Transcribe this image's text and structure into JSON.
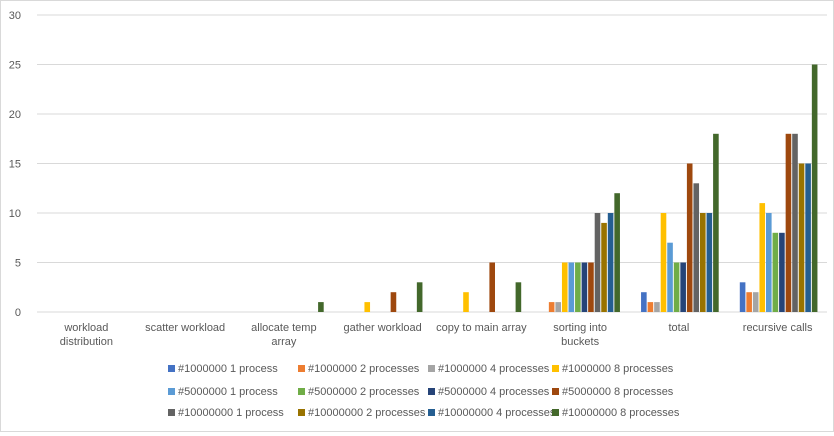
{
  "chart_data": {
    "type": "bar",
    "title": "",
    "xlabel": "",
    "ylabel": "",
    "ylim": [
      0,
      30
    ],
    "yticks": [
      0,
      5,
      10,
      15,
      20,
      25,
      30
    ],
    "grid": true,
    "legend_position": "bottom",
    "categories": [
      [
        "workload",
        "distribution"
      ],
      [
        "scatter workload"
      ],
      [
        "allocate temp",
        "array"
      ],
      [
        "gather workload"
      ],
      [
        "copy to main array"
      ],
      [
        "sorting into",
        "buckets"
      ],
      [
        "total"
      ],
      [
        "recursive calls"
      ]
    ],
    "series": [
      {
        "name": "#1000000 1 process",
        "color": "#4472C4",
        "values": [
          0,
          0,
          0,
          0,
          0,
          0,
          2,
          3
        ]
      },
      {
        "name": "#1000000 2 processes",
        "color": "#ED7D31",
        "values": [
          0,
          0,
          0,
          0,
          0,
          1,
          1,
          2
        ]
      },
      {
        "name": "#1000000 4 processes",
        "color": "#A5A5A5",
        "values": [
          0,
          0,
          0,
          0,
          0,
          1,
          1,
          2
        ]
      },
      {
        "name": "#1000000 8 processes",
        "color": "#FFC000",
        "values": [
          0,
          0,
          0,
          1,
          2,
          5,
          10,
          11
        ]
      },
      {
        "name": "#5000000 1 process",
        "color": "#5B9BD5",
        "values": [
          0,
          0,
          0,
          0,
          0,
          5,
          7,
          10
        ]
      },
      {
        "name": "#5000000 2 processes",
        "color": "#70AD47",
        "values": [
          0,
          0,
          0,
          0,
          0,
          5,
          5,
          8
        ]
      },
      {
        "name": "#5000000 4 processes",
        "color": "#264478",
        "values": [
          0,
          0,
          0,
          0,
          0,
          5,
          5,
          8
        ]
      },
      {
        "name": "#5000000 8 processes",
        "color": "#9E480E",
        "values": [
          0,
          0,
          0,
          2,
          5,
          5,
          15,
          18
        ]
      },
      {
        "name": "#10000000 1 process",
        "color": "#636363",
        "values": [
          0,
          0,
          0,
          0,
          0,
          10,
          13,
          18
        ]
      },
      {
        "name": "#10000000 2 processes",
        "color": "#997300",
        "values": [
          0,
          0,
          0,
          0,
          0,
          9,
          10,
          15
        ]
      },
      {
        "name": "#10000000 4 processes",
        "color": "#255E91",
        "values": [
          0,
          0,
          0,
          0,
          0,
          10,
          10,
          15
        ]
      },
      {
        "name": "#10000000 8 processes",
        "color": "#43682B",
        "values": [
          0,
          0,
          1,
          3,
          3,
          12,
          18,
          25
        ]
      }
    ]
  }
}
